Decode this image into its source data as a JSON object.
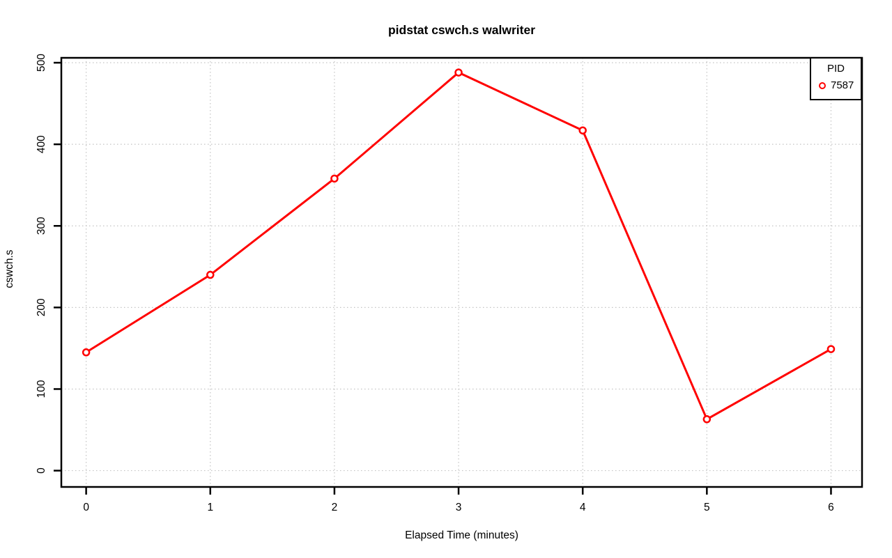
{
  "figure": {
    "background": "#ffffff"
  },
  "chart_data": {
    "type": "line",
    "title": "pidstat cswch.s walwriter",
    "xlabel": "Elapsed Time (minutes)",
    "ylabel": "cswch.s",
    "x": [
      0,
      1,
      2,
      3,
      4,
      5,
      6
    ],
    "series": [
      {
        "name": "7587",
        "color": "#ff0000",
        "marker": "open-circle",
        "values": [
          145,
          240,
          358,
          488,
          417,
          63,
          149
        ]
      }
    ],
    "x_ticks": [
      0,
      1,
      2,
      3,
      4,
      5,
      6
    ],
    "y_ticks": [
      0,
      100,
      200,
      300,
      400,
      500
    ],
    "xlim": [
      -0.2,
      6.25
    ],
    "ylim": [
      -20,
      506
    ],
    "grid": true,
    "grid_style": "dotted",
    "legend": {
      "title": "PID",
      "position": "top-right"
    },
    "colors": {
      "series": "#ff0000",
      "grid": "#c3c3c3",
      "axis": "#000000",
      "marker_fill": "#ffffff",
      "background": "#ffffff"
    }
  }
}
